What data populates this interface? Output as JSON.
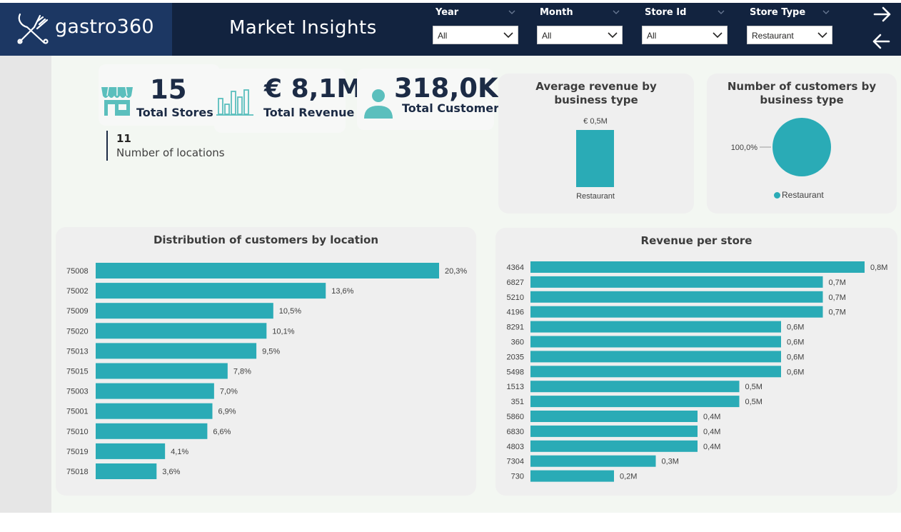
{
  "header": {
    "logo_text": "gastro360",
    "title": "Market Insights",
    "filters": [
      {
        "label": "Year",
        "value": "All"
      },
      {
        "label": "Month",
        "value": "All"
      },
      {
        "label": "Store Id",
        "value": "All"
      },
      {
        "label": "Store Type",
        "value": "Restaurant"
      }
    ]
  },
  "kpis": {
    "stores": {
      "value": "15",
      "label": "Total Stores"
    },
    "revenue": {
      "value": "€ 8,1M",
      "label": "Total Revenue"
    },
    "customers": {
      "value": "318,0K",
      "label": "Total Customers"
    },
    "locations": {
      "value": "11",
      "label": "Number of locations"
    }
  },
  "colors": {
    "accent": "#2aabb6",
    "header_bg": "#12233f",
    "logo_bg": "#1c3763",
    "kpi_text": "#1c2b45"
  },
  "avg_revenue_panel": {
    "title": "Average revenue by business type",
    "category": "Restaurant",
    "value_label": "€ 0,5M"
  },
  "customers_type_panel": {
    "title": "Number of customers by business type",
    "slice_label": "100,0%",
    "legend": "Restaurant"
  },
  "chart_data": [
    {
      "type": "bar",
      "orientation": "horizontal",
      "title": "Average revenue by business type",
      "categories": [
        "Restaurant"
      ],
      "values": [
        0.5
      ],
      "data_labels": [
        "€ 0,5M"
      ]
    },
    {
      "type": "pie",
      "title": "Number of customers by business type",
      "categories": [
        "Restaurant"
      ],
      "values": [
        100.0
      ],
      "data_labels": [
        "100,0%"
      ]
    },
    {
      "type": "bar",
      "orientation": "horizontal",
      "title": "Distribution of customers by location",
      "categories": [
        "75008",
        "75002",
        "75009",
        "75020",
        "75013",
        "75015",
        "75003",
        "75001",
        "75010",
        "75019",
        "75018"
      ],
      "values": [
        20.3,
        13.6,
        10.5,
        10.1,
        9.5,
        7.8,
        7.0,
        6.9,
        6.6,
        4.1,
        3.6
      ],
      "data_labels": [
        "20,3%",
        "13,6%",
        "10,5%",
        "10,1%",
        "9,5%",
        "7,8%",
        "7,0%",
        "6,9%",
        "6,6%",
        "4,1%",
        "3,6%"
      ]
    },
    {
      "type": "bar",
      "orientation": "horizontal",
      "title": "Revenue per store",
      "categories": [
        "4364",
        "6827",
        "5210",
        "4196",
        "8291",
        "360",
        "2035",
        "5498",
        "1513",
        "351",
        "5860",
        "6830",
        "4803",
        "7304",
        "730"
      ],
      "values": [
        0.8,
        0.7,
        0.7,
        0.7,
        0.6,
        0.6,
        0.6,
        0.6,
        0.5,
        0.5,
        0.4,
        0.4,
        0.4,
        0.3,
        0.2
      ],
      "data_labels": [
        "0,8M",
        "0,7M",
        "0,7M",
        "0,7M",
        "0,6M",
        "0,6M",
        "0,6M",
        "0,6M",
        "0,5M",
        "0,5M",
        "0,4M",
        "0,4M",
        "0,4M",
        "0,3M",
        "0,2M"
      ]
    }
  ]
}
